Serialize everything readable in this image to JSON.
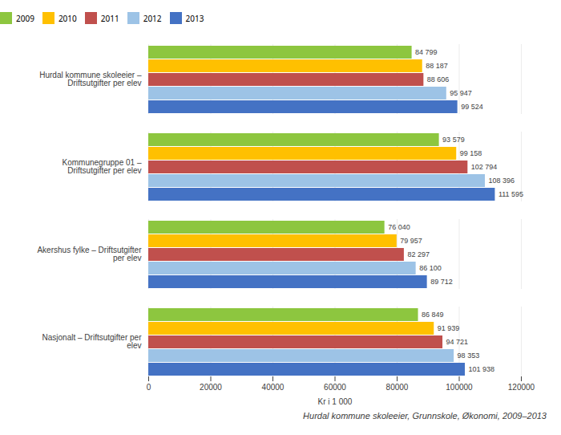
{
  "chart_data": {
    "type": "bar",
    "orientation": "horizontal",
    "categories": [
      "Hurdal kommune skoleeier –\nDriftsutgifter per elev",
      "Kommunegruppe 01 –\nDriftsutgifter per elev",
      "Akershus fylke – Driftsutgifter\nper elev",
      "Nasjonalt – Driftsutgifter per\nelev"
    ],
    "series": [
      {
        "name": "2009",
        "color": "#8dc63f",
        "values": [
          84799,
          93579,
          76040,
          86849
        ],
        "value_labels": [
          "84 799",
          "93 579",
          "76 040",
          "86 849"
        ]
      },
      {
        "name": "2010",
        "color": "#ffc000",
        "values": [
          88187,
          99158,
          79957,
          91939
        ],
        "value_labels": [
          "88 187",
          "99 158",
          "79 957",
          "91 939"
        ]
      },
      {
        "name": "2011",
        "color": "#c0504d",
        "values": [
          88606,
          102794,
          82297,
          94721
        ],
        "value_labels": [
          "88 606",
          "102 794",
          "82 297",
          "94 721"
        ]
      },
      {
        "name": "2012",
        "color": "#9dc3e6",
        "values": [
          95947,
          108396,
          86100,
          98353
        ],
        "value_labels": [
          "95 947",
          "108 396",
          "86 100",
          "98 353"
        ]
      },
      {
        "name": "2013",
        "color": "#4472c4",
        "values": [
          99524,
          111595,
          89712,
          101938
        ],
        "value_labels": [
          "99 524",
          "111 595",
          "89 712",
          "101 938"
        ]
      }
    ],
    "xlabel": "Kr i 1 000",
    "xlim": [
      0,
      120000
    ],
    "xticks": [
      0,
      20000,
      40000,
      60000,
      80000,
      100000,
      120000
    ],
    "grid": true,
    "legend": "top",
    "data_labels": true,
    "caption": "Hurdal kommune skoleeier, Grunnskole, Økonomi, 2009–2013"
  }
}
